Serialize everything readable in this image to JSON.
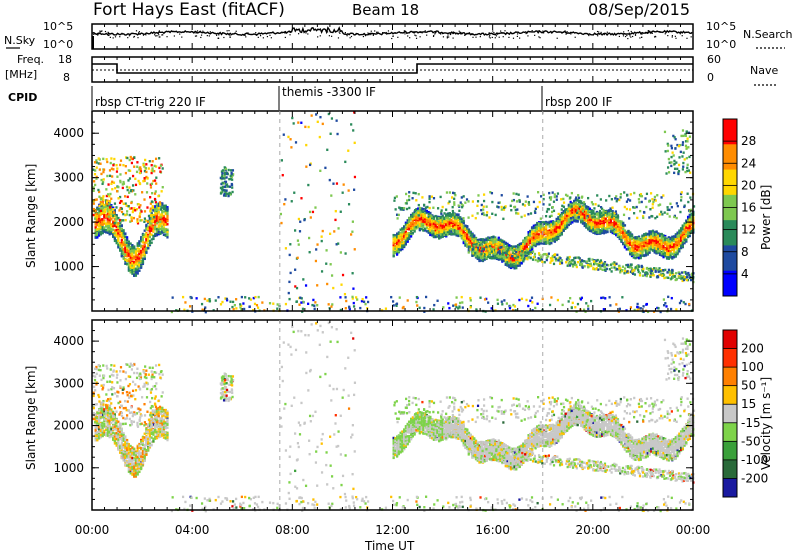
{
  "header": {
    "title": "Fort Hays East (fitACF)",
    "beam": "Beam 18",
    "date": "08/Sep/2015"
  },
  "noise_panel": {
    "left_label": "N.Sky",
    "right_label": "N.Search",
    "y_ticks": [
      "10^5",
      "10^0"
    ]
  },
  "freq_panel": {
    "left_label_1": "Freq.",
    "left_label_2": "[MHz]",
    "right_label": "Nave",
    "left_ticks": [
      "18",
      "8"
    ],
    "right_ticks": [
      "60",
      "0"
    ]
  },
  "cpid": {
    "label": "CPID",
    "segments": [
      {
        "label": "rbsp CT-trig 220 IF",
        "start_hour": 0.0
      },
      {
        "label": "themis -3300 IF",
        "start_hour": 7.5
      },
      {
        "label": "rbsp 200 IF",
        "start_hour": 18.0
      }
    ]
  },
  "chart_data": [
    {
      "type": "heatmap",
      "name": "power",
      "ylabel": "Slant Range [km]",
      "xlabel": "",
      "ylim": [
        0,
        4500
      ],
      "y_ticks": [
        "1000",
        "2000",
        "3000",
        "4000"
      ],
      "colorbar_label": "Power [dB]",
      "colorbar_ticks": [
        "4",
        "8",
        "12",
        "16",
        "20",
        "24",
        "28"
      ],
      "colors": [
        "#0000ff",
        "#1e4aa0",
        "#2a8a5a",
        "#7ec850",
        "#ffd700",
        "#ff8c00",
        "#ff0000"
      ]
    },
    {
      "type": "heatmap",
      "name": "velocity",
      "ylabel": "Slant Range [km]",
      "xlabel": "Time UT",
      "ylim": [
        0,
        4500
      ],
      "y_ticks": [
        "1000",
        "2000",
        "3000",
        "4000"
      ],
      "colorbar_label": "Velocity [m s⁻¹]",
      "colorbar_ticks": [
        "200",
        "100",
        "50",
        "15",
        "-15",
        "-50",
        "-100",
        "-200"
      ],
      "colors": [
        "#1a1aa0",
        "#2a6a3a",
        "#3aa03a",
        "#7ed34a",
        "#c8c8c8",
        "#ffc000",
        "#ff8000",
        "#ff3000",
        "#e00000"
      ]
    }
  ],
  "x_axis": {
    "label": "Time UT",
    "xlim_hours": [
      0,
      24
    ],
    "ticks": [
      "00:00",
      "04:00",
      "08:00",
      "12:00",
      "16:00",
      "20:00",
      "00:00"
    ]
  }
}
